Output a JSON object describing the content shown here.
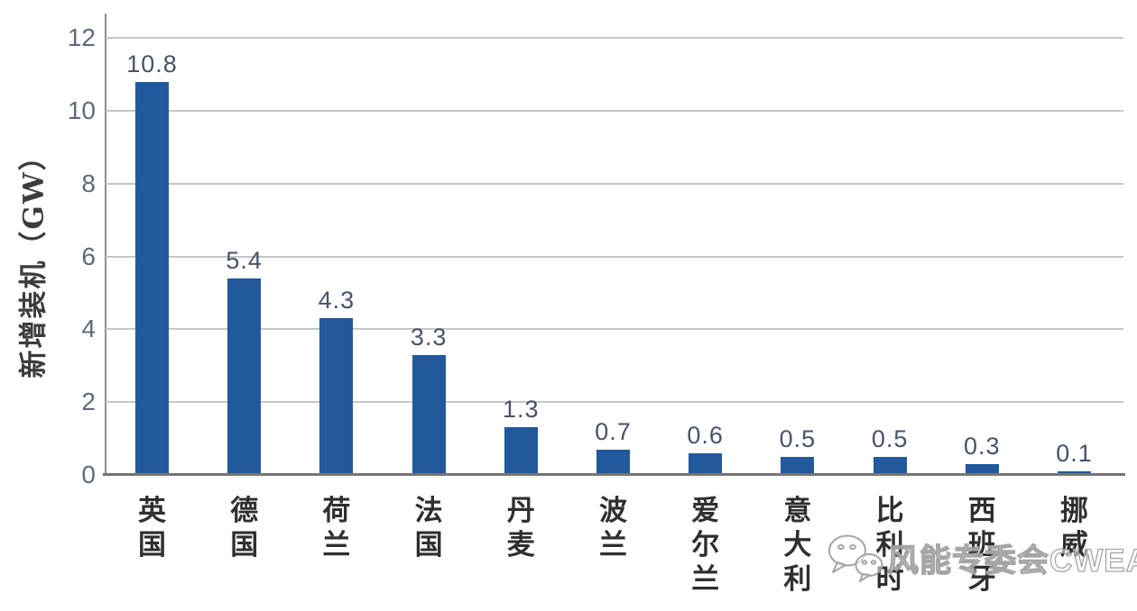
{
  "chart_data": {
    "type": "bar",
    "categories": [
      "英国",
      "德国",
      "荷兰",
      "法国",
      "丹麦",
      "波兰",
      "爱尔兰",
      "意大利",
      "比利时",
      "西班牙",
      "挪威"
    ],
    "values": [
      10.8,
      5.4,
      4.3,
      3.3,
      1.3,
      0.7,
      0.6,
      0.5,
      0.5,
      0.3,
      0.1
    ],
    "title": "",
    "xlabel": "",
    "ylabel": "新增装机（GW）",
    "ylim": [
      0,
      12
    ],
    "yticks": [
      0,
      2,
      4,
      6,
      8,
      10,
      12
    ],
    "grid": true,
    "legend": "none",
    "bar_color": "#22599c",
    "grid_color": "#c6c6c6",
    "axis_color": "#757575",
    "value_label_color": "#47536a",
    "tick_label_color": "#5e6b7c"
  },
  "watermark": {
    "icon": "wechat-icon",
    "text": "风能专委会CWEA"
  }
}
